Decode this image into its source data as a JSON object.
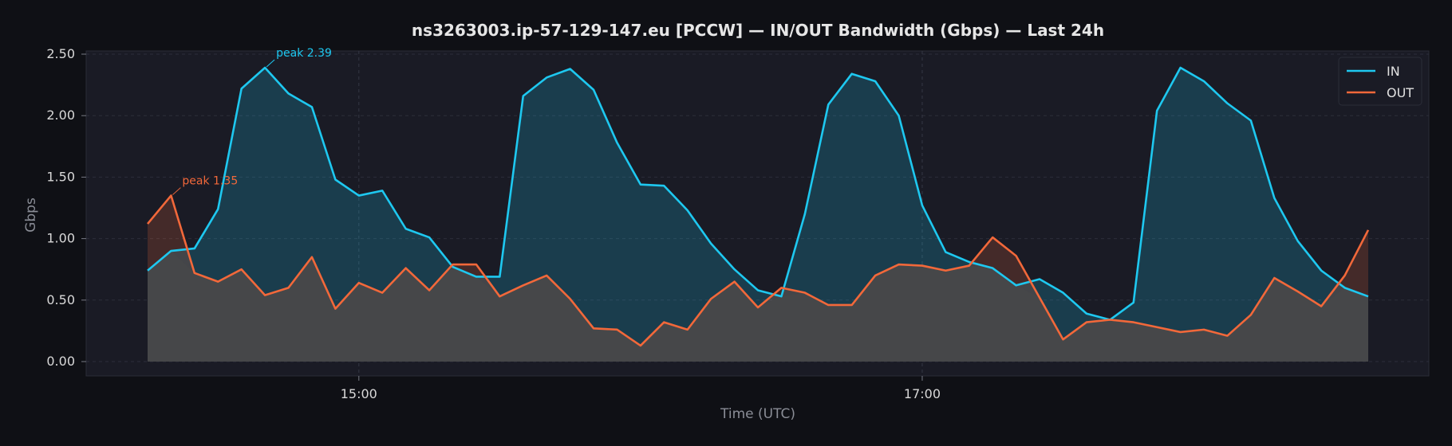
{
  "chart_data": {
    "type": "line",
    "title": "ns3263003.ip-57-129-147.eu [PCCW] — IN/OUT Bandwidth (Gbps) — Last 24h",
    "xlabel": "Time (UTC)",
    "ylabel": "Gbps",
    "ylim": [
      0,
      2.5
    ],
    "y_ticks": [
      "0.00",
      "0.50",
      "1.00",
      "1.50",
      "2.00",
      "2.50"
    ],
    "x_ticks": [
      "15:00",
      "17:00"
    ],
    "x_start": "14:15",
    "interval_minutes": 5,
    "grid": true,
    "legend_position": "top-right",
    "colors": {
      "IN": "#1ec8f0",
      "OUT": "#f2683a",
      "background": "#0f1015",
      "plot_area": "#1a1b25",
      "overlap_fill": "#464749"
    },
    "series": [
      {
        "name": "IN",
        "values": [
          0.74,
          0.9,
          0.92,
          1.24,
          2.22,
          2.39,
          2.18,
          2.07,
          1.48,
          1.35,
          1.39,
          1.08,
          1.01,
          0.77,
          0.69,
          0.69,
          2.16,
          2.31,
          2.38,
          2.21,
          1.78,
          1.44,
          1.43,
          1.23,
          0.96,
          0.75,
          0.58,
          0.53,
          1.2,
          2.09,
          2.34,
          2.28,
          2.0,
          1.27,
          0.89,
          0.81,
          0.76,
          0.62,
          0.67,
          0.56,
          0.39,
          0.34,
          0.48,
          2.04,
          2.39,
          2.28,
          2.1,
          1.96,
          1.33,
          0.98,
          0.74,
          0.6,
          0.53
        ]
      },
      {
        "name": "OUT",
        "values": [
          1.12,
          1.35,
          0.72,
          0.65,
          0.75,
          0.54,
          0.6,
          0.85,
          0.43,
          0.64,
          0.56,
          0.76,
          0.58,
          0.79,
          0.79,
          0.53,
          0.62,
          0.7,
          0.51,
          0.27,
          0.26,
          0.13,
          0.32,
          0.26,
          0.51,
          0.65,
          0.44,
          0.6,
          0.56,
          0.46,
          0.46,
          0.7,
          0.79,
          0.78,
          0.74,
          0.78,
          1.01,
          0.86,
          0.52,
          0.18,
          0.32,
          0.34,
          0.32,
          0.28,
          0.24,
          0.26,
          0.21,
          0.38,
          0.68,
          0.57,
          0.45,
          0.7,
          1.07
        ]
      }
    ],
    "annotations": [
      {
        "series": "IN",
        "text": "peak 2.39",
        "x": "14:40",
        "y": 2.39
      },
      {
        "series": "OUT",
        "text": "peak 1.35",
        "x": "14:20",
        "y": 1.35
      }
    ]
  }
}
